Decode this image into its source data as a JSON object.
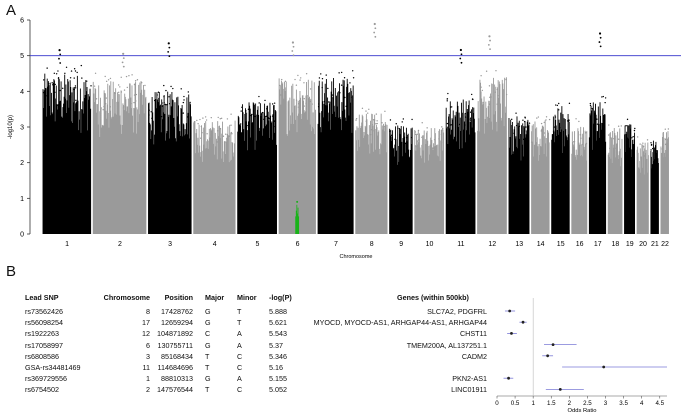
{
  "panel_a": {
    "label": "A"
  },
  "panel_b": {
    "label": "B"
  },
  "colors": {
    "dark": "#000000",
    "light": "#9a9a9a",
    "highlight": "#19b319",
    "threshold": "#3333cc",
    "sig_light": "#7a7ad6"
  },
  "chart_data": [
    {
      "type": "scatter",
      "subtype": "manhattan",
      "xlabel": "Chromosome",
      "ylabel": "-log10(p)",
      "ylim": [
        0,
        6
      ],
      "yticks": [
        0,
        1,
        2,
        3,
        4,
        5,
        6
      ],
      "threshold": 5.0,
      "chromosomes": [
        "1",
        "2",
        "3",
        "4",
        "5",
        "6",
        "7",
        "8",
        "9",
        "10",
        "11",
        "12",
        "13",
        "14",
        "15",
        "16",
        "17",
        "18",
        "19",
        "20",
        "21",
        "22"
      ],
      "chromosome_bulk_max": [
        4.5,
        4.3,
        4.0,
        3.2,
        3.7,
        4.4,
        4.4,
        3.4,
        3.1,
        3.0,
        3.8,
        4.4,
        3.3,
        3.2,
        3.6,
        3.1,
        3.7,
        3.0,
        3.1,
        2.6,
        2.7,
        2.9
      ],
      "peaks": [
        {
          "chromosome": "1",
          "value": 5.155
        },
        {
          "chromosome": "2",
          "value": 5.052
        },
        {
          "chromosome": "3",
          "value": 5.346
        },
        {
          "chromosome": "6",
          "value": 5.37
        },
        {
          "chromosome": "8",
          "value": 5.888
        },
        {
          "chromosome": "11",
          "value": 5.16
        },
        {
          "chromosome": "12",
          "value": 5.543
        },
        {
          "chromosome": "17",
          "value": 5.621
        }
      ],
      "highlight": {
        "chromosome": "6",
        "value": 0.9,
        "color": "#19b319"
      }
    },
    {
      "type": "table",
      "subtype": "forest",
      "columns": [
        "Lead SNP",
        "Chromosome",
        "Position",
        "Major",
        "Minor",
        "-log(P)",
        "Genes (within 500kb)"
      ],
      "rows": [
        [
          "rs73562426",
          "8",
          "17428762",
          "G",
          "T",
          "5.888",
          "SLC7A2, PDGFRL"
        ],
        [
          "rs56098254",
          "17",
          "12659294",
          "G",
          "T",
          "5.621",
          "MYOCD, MYOCD-AS1, ARHGAP44-AS1, ARHGAP44"
        ],
        [
          "rs1922263",
          "12",
          "104871892",
          "C",
          "A",
          "5.543",
          "CHST11"
        ],
        [
          "rs17058997",
          "6",
          "130755711",
          "G",
          "A",
          "5.37",
          "TMEM200A, AL137251.1"
        ],
        [
          "rs6808586",
          "3",
          "85168434",
          "T",
          "C",
          "5.346",
          "CADM2"
        ],
        [
          "GSA-rs34481469",
          "11",
          "114684696",
          "T",
          "C",
          "5.16",
          ""
        ],
        [
          "rs369729556",
          "1",
          "88810313",
          "G",
          "A",
          "5.155",
          "PKN2-AS1"
        ],
        [
          "rs6754502",
          "2",
          "147576544",
          "T",
          "C",
          "5.052",
          "LINC01911"
        ]
      ],
      "odds_ratio": [
        {
          "or": 0.35,
          "lo": 0.22,
          "hi": 0.5
        },
        {
          "or": 0.72,
          "lo": 0.62,
          "hi": 0.82
        },
        {
          "or": 0.4,
          "lo": 0.28,
          "hi": 0.55
        },
        {
          "or": 1.55,
          "lo": 1.3,
          "hi": 2.2
        },
        {
          "or": 1.4,
          "lo": 1.25,
          "hi": 1.55
        },
        {
          "or": 2.95,
          "lo": 1.8,
          "hi": 4.7
        },
        {
          "or": 0.32,
          "lo": 0.18,
          "hi": 0.45
        },
        {
          "or": 1.75,
          "lo": 1.35,
          "hi": 2.4
        }
      ],
      "xlabel": "Odds Ratio",
      "xlim": [
        0,
        4.7
      ],
      "xticks": [
        "0",
        "0.5",
        "1",
        "1.5",
        "2",
        "2.5",
        "3",
        "3.5",
        "4",
        "4.5"
      ],
      "reference_line": 1
    }
  ]
}
